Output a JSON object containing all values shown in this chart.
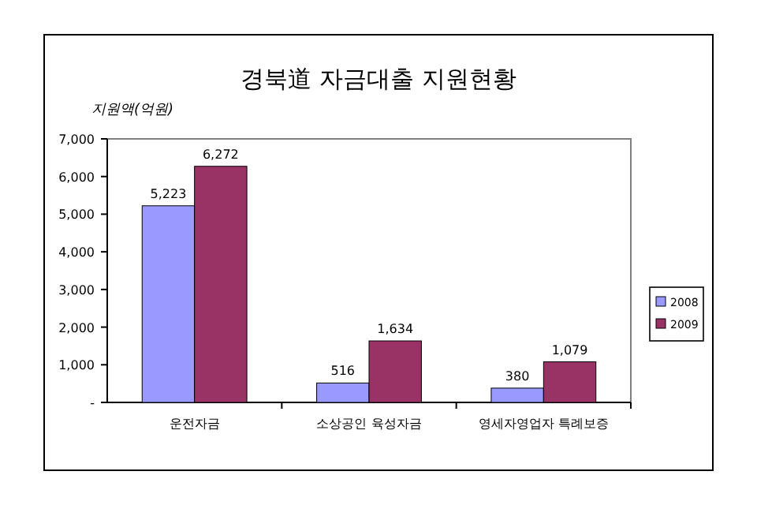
{
  "chart_data": {
    "type": "bar",
    "title": "경북道 자금대출 지원현황",
    "ylabel": "지원액(억원)",
    "categories": [
      "운전자금",
      "소상공인 육성자금",
      "영세자영업자 특례보증"
    ],
    "series": [
      {
        "name": "2008",
        "color": "#9999ff",
        "values": [
          5223,
          516,
          380
        ],
        "value_labels": [
          "5,223",
          "516",
          "380"
        ]
      },
      {
        "name": "2009",
        "color": "#993366",
        "values": [
          6272,
          1634,
          1079
        ],
        "value_labels": [
          "6,272",
          "1,634",
          "1,079"
        ]
      }
    ],
    "ylim": [
      0,
      7000
    ],
    "yticks": [
      {
        "value": 0,
        "label": "-"
      },
      {
        "value": 1000,
        "label": "1,000"
      },
      {
        "value": 2000,
        "label": "2,000"
      },
      {
        "value": 3000,
        "label": "3,000"
      },
      {
        "value": 4000,
        "label": "4,000"
      },
      {
        "value": 5000,
        "label": "5,000"
      },
      {
        "value": 6000,
        "label": "6,000"
      },
      {
        "value": 7000,
        "label": "7,000"
      }
    ],
    "legend": "right"
  }
}
